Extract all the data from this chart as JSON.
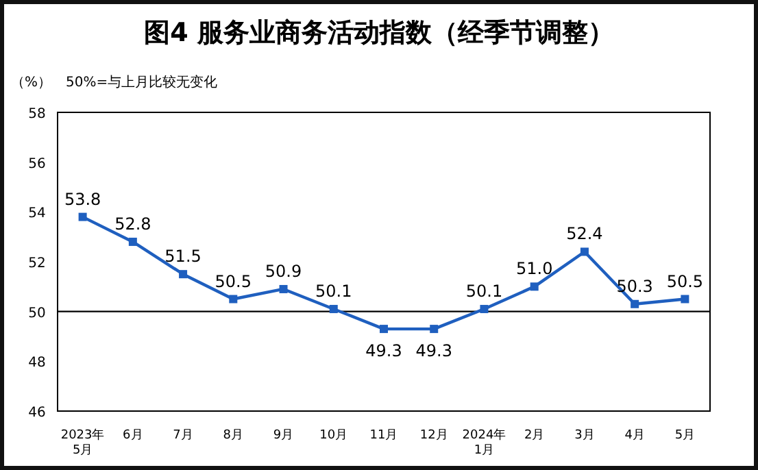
{
  "chart_data": {
    "type": "line",
    "title": "图4 服务业商务活动指数（经季节调整）",
    "ylabel": "（%）",
    "annotations": [
      "50%=与上月比较无变化"
    ],
    "categories": [
      "2023年\n5月",
      "6月",
      "7月",
      "8月",
      "9月",
      "10月",
      "11月",
      "12月",
      "2024年\n1月",
      "2月",
      "3月",
      "4月",
      "5月"
    ],
    "series": [
      {
        "color": "#1f5fbf",
        "values": [
          53.8,
          52.8,
          51.5,
          50.5,
          50.9,
          50.1,
          49.3,
          49.3,
          50.1,
          51.0,
          52.4,
          50.3,
          50.5
        ],
        "value_labels": [
          "53.8",
          "52.8",
          "51.5",
          "50.5",
          "50.9",
          "50.1",
          "49.3",
          "49.3",
          "50.1",
          "51.0",
          "52.4",
          "50.3",
          "50.5"
        ]
      }
    ],
    "ylim": [
      46,
      58
    ],
    "yticks": [
      46,
      48,
      50,
      52,
      54,
      56,
      58
    ],
    "ref_lines": [
      {
        "axis": "y",
        "value": 50,
        "color": "#000000"
      }
    ],
    "marker": "square",
    "line_style": "solid",
    "grid": false
  }
}
